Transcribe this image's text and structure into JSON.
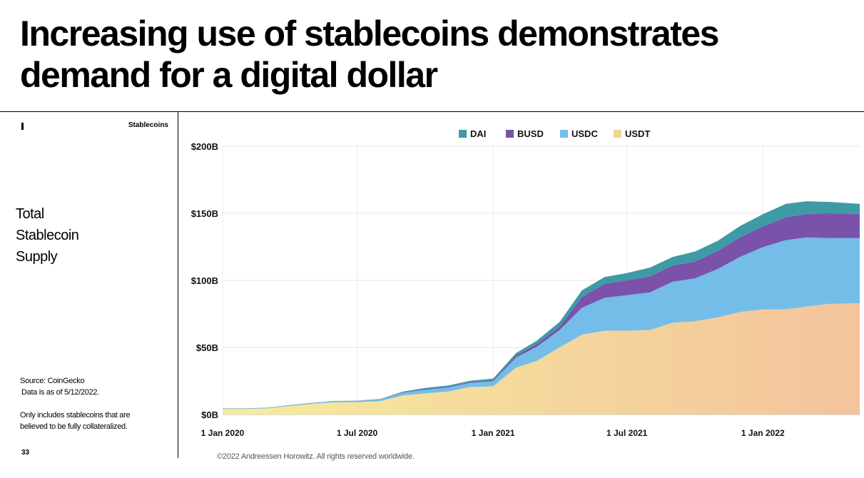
{
  "page": {
    "title_line1": "Increasing use of stablecoins demonstrates",
    "title_line2": "demand for a digital dollar",
    "section_label": "Stablecoins",
    "subtitle_line1": "Total",
    "subtitle_line2": "Stablecoin",
    "subtitle_line3": "Supply",
    "source_line1": "Source: CoinGecko",
    "source_line2": "Data is as of 5/12/2022.",
    "note_line1": "Only includes stablecoins that are",
    "note_line2": "believed to be fully collateralized.",
    "page_number": "33",
    "footer": "©2022 Andreessen Horowitz. All rights reserved worldwide."
  },
  "chart_data": {
    "type": "area",
    "stacked": true,
    "ylim": [
      0,
      200
    ],
    "ytick_labels": [
      "$0B",
      "$50B",
      "$100B",
      "$150B",
      "$200B"
    ],
    "ytick_values": [
      0,
      50,
      100,
      150,
      200
    ],
    "x_range": [
      "2020-01-01",
      "2022-05-12"
    ],
    "xtick_labels": [
      "1 Jan 2020",
      "1 Jul 2020",
      "1 Jan 2021",
      "1 Jul 2021",
      "1 Jan 2022"
    ],
    "xtick_dates": [
      "2020-01-01",
      "2020-07-01",
      "2021-01-01",
      "2021-07-01",
      "2022-01-01"
    ],
    "grid": true,
    "legend_position": "top-center",
    "x": [
      "2020-01-01",
      "2020-02-01",
      "2020-03-01",
      "2020-04-01",
      "2020-05-01",
      "2020-06-01",
      "2020-07-01",
      "2020-08-01",
      "2020-09-01",
      "2020-10-01",
      "2020-11-01",
      "2020-12-01",
      "2021-01-01",
      "2021-02-01",
      "2021-03-01",
      "2021-04-01",
      "2021-05-01",
      "2021-06-01",
      "2021-07-01",
      "2021-08-01",
      "2021-09-01",
      "2021-10-01",
      "2021-11-01",
      "2021-12-01",
      "2022-01-01",
      "2022-02-01",
      "2022-03-01",
      "2022-04-01",
      "2022-05-12"
    ],
    "series": [
      {
        "name": "USDT",
        "color_start": "#f5ec9d",
        "color_end": "#f4c39c",
        "values": [
          4.1,
          4.1,
          4.6,
          6.4,
          8.0,
          9.1,
          9.2,
          10.0,
          14.2,
          15.7,
          17.2,
          20.5,
          21.0,
          35.0,
          40.0,
          50.0,
          59.5,
          62.5,
          62.5,
          63.0,
          68.5,
          69.5,
          72.5,
          76.5,
          78.3,
          78.5,
          80.5,
          82.5,
          83.0
        ]
      },
      {
        "name": "USDC",
        "color": "#74bde8",
        "values": [
          0.3,
          0.3,
          0.3,
          0.4,
          0.6,
          0.8,
          0.9,
          1.2,
          2.0,
          2.7,
          2.9,
          3.0,
          3.8,
          7.5,
          10.5,
          13.0,
          20.0,
          24.5,
          26.5,
          28.0,
          30.5,
          32.0,
          36.0,
          41.0,
          46.5,
          51.5,
          51.5,
          49.0,
          48.5
        ]
      },
      {
        "name": "BUSD",
        "color": "#7a52a9",
        "values": [
          0.1,
          0.1,
          0.1,
          0.1,
          0.1,
          0.1,
          0.1,
          0.1,
          0.3,
          0.5,
          0.5,
          0.6,
          0.7,
          1.5,
          2.0,
          2.5,
          8.0,
          10.5,
          11.0,
          12.0,
          12.0,
          12.5,
          13.5,
          14.5,
          15.5,
          17.0,
          17.5,
          18.5,
          18.0
        ]
      },
      {
        "name": "DAI",
        "color": "#3e9aa5",
        "values": [
          0.1,
          0.1,
          0.1,
          0.1,
          0.1,
          0.1,
          0.1,
          0.3,
          0.6,
          0.9,
          1.0,
          1.1,
          1.3,
          1.8,
          2.5,
          3.5,
          5.0,
          5.0,
          5.5,
          6.5,
          6.5,
          7.5,
          7.5,
          8.5,
          9.0,
          10.0,
          9.5,
          8.5,
          7.5
        ]
      }
    ]
  }
}
